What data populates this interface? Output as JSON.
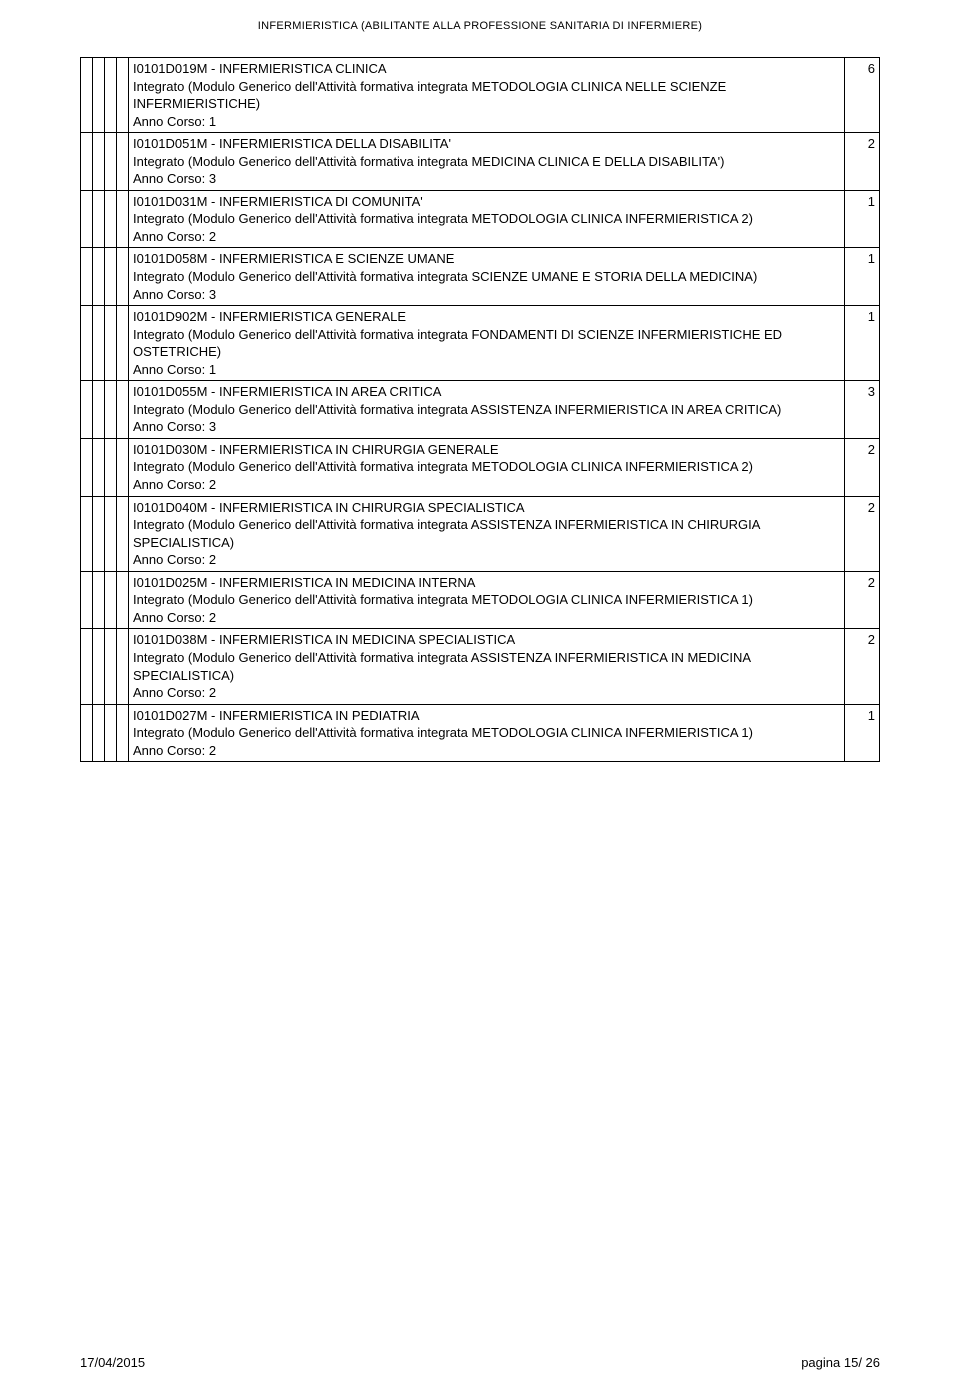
{
  "header": "INFERMIERISTICA (ABILITANTE ALLA PROFESSIONE SANITARIA DI INFERMIERE)",
  "footer": {
    "date": "17/04/2015",
    "page": "pagina 15/ 26"
  },
  "rows": [
    {
      "desc": "I0101D019M - INFERMIERISTICA CLINICA\nIntegrato (Modulo Generico dell'Attività formativa integrata METODOLOGIA CLINICA NELLE SCIENZE INFERMIERISTICHE)\nAnno Corso: 1",
      "value": "6"
    },
    {
      "desc": "I0101D051M - INFERMIERISTICA DELLA DISABILITA'\nIntegrato (Modulo Generico dell'Attività formativa integrata MEDICINA CLINICA E DELLA DISABILITA')\nAnno Corso: 3",
      "value": "2"
    },
    {
      "desc": "I0101D031M - INFERMIERISTICA DI COMUNITA'\nIntegrato (Modulo Generico dell'Attività formativa integrata METODOLOGIA CLINICA INFERMIERISTICA 2)\nAnno Corso: 2",
      "value": "1"
    },
    {
      "desc": "I0101D058M - INFERMIERISTICA E SCIENZE UMANE\nIntegrato (Modulo Generico dell'Attività formativa integrata SCIENZE UMANE E STORIA DELLA MEDICINA)\nAnno Corso: 3",
      "value": "1"
    },
    {
      "desc": "I0101D902M - INFERMIERISTICA GENERALE\nIntegrato (Modulo Generico dell'Attività formativa integrata FONDAMENTI DI SCIENZE INFERMIERISTICHE ED OSTETRICHE)\nAnno Corso: 1",
      "value": "1"
    },
    {
      "desc": "I0101D055M - INFERMIERISTICA IN AREA CRITICA\nIntegrato (Modulo Generico dell'Attività formativa integrata ASSISTENZA INFERMIERISTICA IN AREA CRITICA)\nAnno Corso: 3",
      "value": "3"
    },
    {
      "desc": "I0101D030M - INFERMIERISTICA IN CHIRURGIA GENERALE\nIntegrato (Modulo Generico dell'Attività formativa integrata METODOLOGIA CLINICA INFERMIERISTICA 2)\nAnno Corso: 2",
      "value": "2"
    },
    {
      "desc": "I0101D040M - INFERMIERISTICA IN CHIRURGIA SPECIALISTICA\nIntegrato (Modulo Generico dell'Attività formativa integrata ASSISTENZA INFERMIERISTICA IN CHIRURGIA SPECIALISTICA)\nAnno Corso: 2",
      "value": "2"
    },
    {
      "desc": "I0101D025M - INFERMIERISTICA IN MEDICINA INTERNA\nIntegrato (Modulo Generico dell'Attività formativa integrata METODOLOGIA CLINICA INFERMIERISTICA 1)\nAnno Corso: 2",
      "value": "2"
    },
    {
      "desc": "I0101D038M - INFERMIERISTICA IN MEDICINA SPECIALISTICA\nIntegrato (Modulo Generico dell'Attività formativa integrata ASSISTENZA INFERMIERISTICA IN MEDICINA SPECIALISTICA)\nAnno Corso: 2",
      "value": "2"
    },
    {
      "desc": "I0101D027M - INFERMIERISTICA IN PEDIATRIA\nIntegrato (Modulo Generico dell'Attività formativa integrata METODOLOGIA CLINICA INFERMIERISTICA 1)\nAnno Corso: 2",
      "value": "1"
    }
  ]
}
